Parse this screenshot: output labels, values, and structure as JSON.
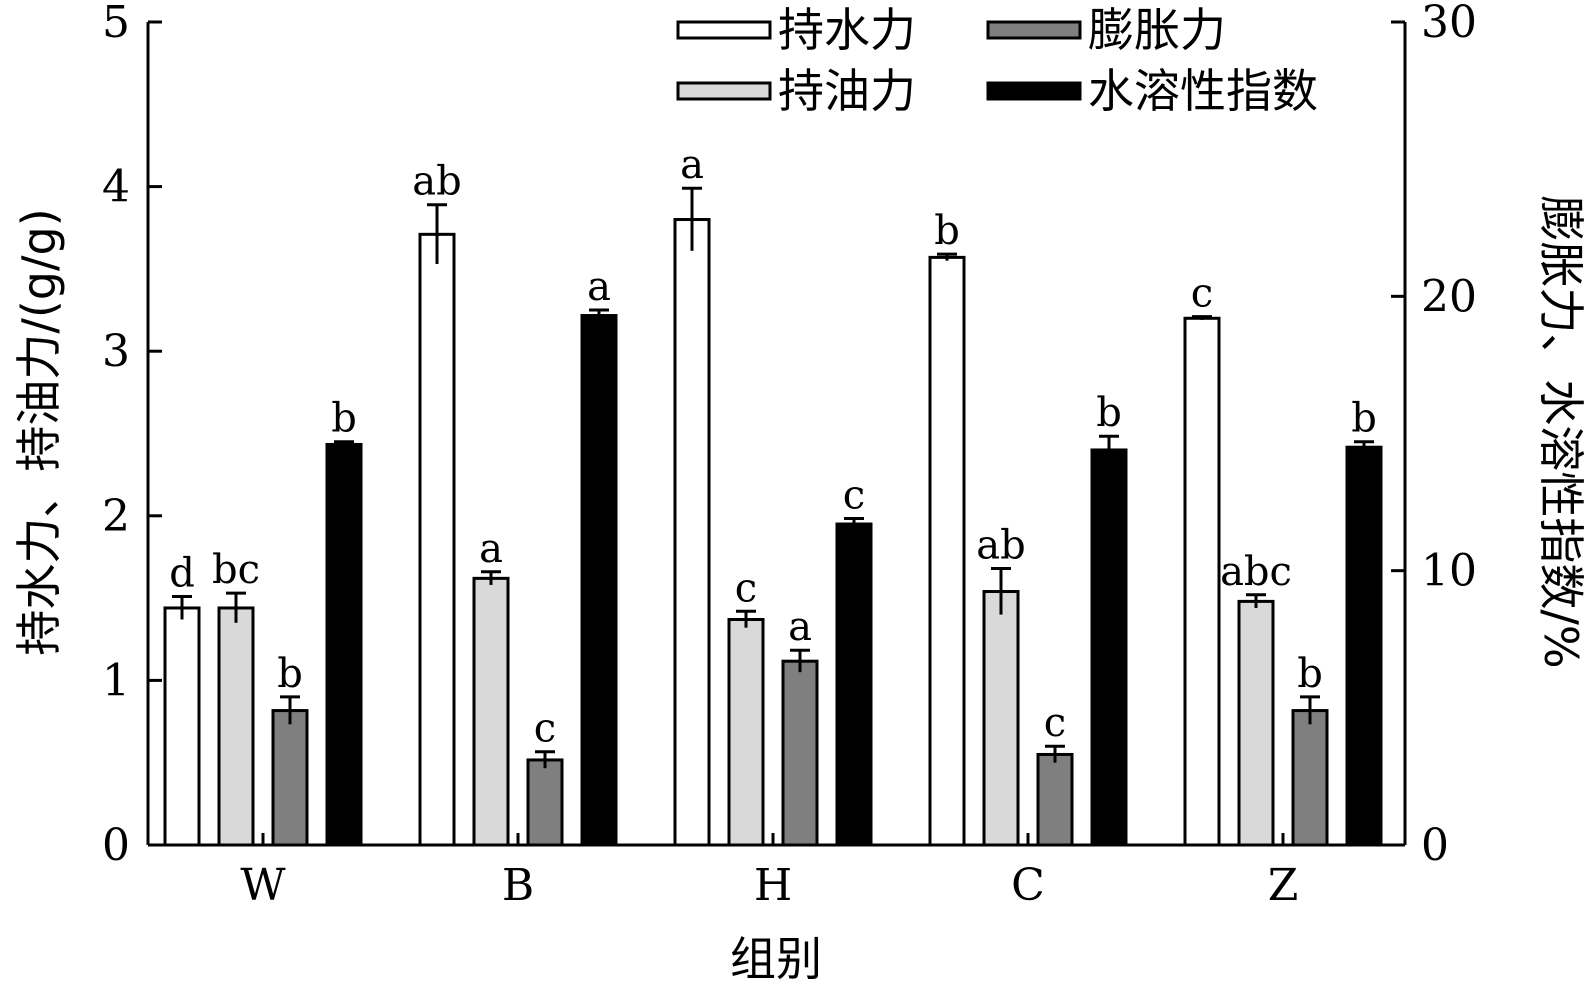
{
  "chart_data": {
    "type": "bar",
    "categories": [
      "W",
      "B",
      "H",
      "C",
      "Z"
    ],
    "xlabel": "组别",
    "ylabel_left": "持水力、持油力/(g/g)",
    "ylabel_right": "膨胀力、水溶性指数/%",
    "ylim_left": [
      0,
      5
    ],
    "ylim_right": [
      0,
      30
    ],
    "yticks_left": [
      "0",
      "1",
      "2",
      "3",
      "4",
      "5"
    ],
    "yticks_right": [
      "0",
      "10",
      "20",
      "30"
    ],
    "grid": false,
    "legend_position": "top-right",
    "series": [
      {
        "name": "持水力",
        "axis": "left",
        "color": "#ffffff",
        "values": [
          1.44,
          3.71,
          3.8,
          3.57,
          3.2
        ],
        "errors": [
          0.07,
          0.18,
          0.19,
          0.02,
          0.01
        ],
        "labels": [
          "d",
          "ab",
          "a",
          "b",
          "c"
        ]
      },
      {
        "name": "持油力",
        "axis": "left",
        "color": "#d9d9d9",
        "values": [
          1.44,
          1.62,
          1.37,
          1.54,
          1.48
        ],
        "errors": [
          0.09,
          0.04,
          0.05,
          0.14,
          0.04
        ],
        "labels": [
          "bc",
          "a",
          "c",
          "ab",
          "abc"
        ]
      },
      {
        "name": "膨胀力",
        "axis": "right",
        "color": "#7f7f7f",
        "values": [
          4.9,
          3.1,
          6.7,
          3.3,
          4.9
        ],
        "errors": [
          0.5,
          0.3,
          0.4,
          0.3,
          0.5
        ],
        "labels": [
          "b",
          "c",
          "a",
          "c",
          "b"
        ]
      },
      {
        "name": "水溶性指数",
        "axis": "right",
        "color": "#000000",
        "values": [
          14.6,
          19.3,
          11.7,
          14.4,
          14.5
        ],
        "errors": [
          0.1,
          0.2,
          0.2,
          0.5,
          0.2
        ],
        "labels": [
          "b",
          "a",
          "c",
          "b",
          "b"
        ]
      }
    ]
  }
}
